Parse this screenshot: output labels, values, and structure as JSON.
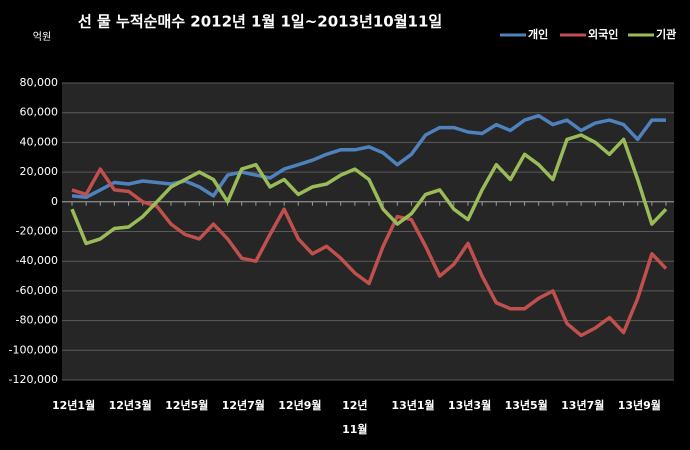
{
  "chart_data": {
    "type": "line",
    "title": "선 물 누적순매수 2012년 1월 1일~2013년10월11일",
    "y_axis_label": "억원",
    "categories": [
      "12년1월",
      null,
      null,
      null,
      "12년3월",
      null,
      null,
      null,
      "12년5월",
      null,
      null,
      null,
      "12년7월",
      null,
      null,
      null,
      "12년9월",
      null,
      null,
      null,
      "12년 11월",
      null,
      null,
      null,
      "13년1월",
      null,
      null,
      null,
      "13년3월",
      null,
      null,
      null,
      "13년5월",
      null,
      null,
      null,
      "13년7월",
      null,
      null,
      null,
      "13년9월",
      null,
      null
    ],
    "series": [
      {
        "name": "개인",
        "color": "#4f81bd",
        "values": [
          4000,
          3000,
          8000,
          13000,
          12000,
          14000,
          13000,
          12000,
          14000,
          10000,
          4000,
          18000,
          20000,
          18000,
          16000,
          22000,
          25000,
          28000,
          32000,
          35000,
          35000,
          37000,
          33000,
          25000,
          32000,
          45000,
          50000,
          50000,
          47000,
          46000,
          52000,
          48000,
          55000,
          58000,
          52000,
          55000,
          48000,
          53000,
          55000,
          52000,
          42000,
          55000,
          55000
        ]
      },
      {
        "name": "외국인",
        "color": "#c0504d",
        "values": [
          8000,
          5000,
          22000,
          8000,
          7000,
          0,
          -3000,
          -15000,
          -22000,
          -25000,
          -15000,
          -25000,
          -38000,
          -40000,
          -22000,
          -5000,
          -25000,
          -35000,
          -30000,
          -38000,
          -48000,
          -55000,
          -30000,
          -10000,
          -12000,
          -30000,
          -50000,
          -42000,
          -28000,
          -50000,
          -68000,
          -72000,
          -72000,
          -65000,
          -60000,
          -82000,
          -90000,
          -85000,
          -78000,
          -88000,
          -65000,
          -35000,
          -45000
        ]
      },
      {
        "name": "기관",
        "color": "#9bbb59",
        "values": [
          -5000,
          -28000,
          -25000,
          -18000,
          -17000,
          -10000,
          0,
          10000,
          15000,
          20000,
          15000,
          0,
          22000,
          25000,
          10000,
          15000,
          5000,
          10000,
          12000,
          18000,
          22000,
          15000,
          -5000,
          -15000,
          -8000,
          5000,
          8000,
          -5000,
          -12000,
          8000,
          25000,
          15000,
          32000,
          25000,
          15000,
          42000,
          45000,
          40000,
          32000,
          42000,
          15000,
          -15000,
          -5000
        ]
      }
    ],
    "ylim": [
      -120000,
      80000
    ],
    "yticks": [
      {
        "value": -120000,
        "label": "-120,000"
      },
      {
        "value": -100000,
        "label": "-100,000"
      },
      {
        "value": -80000,
        "label": "-80,000"
      },
      {
        "value": -60000,
        "label": "-60,000"
      },
      {
        "value": -40000,
        "label": "-40,000"
      },
      {
        "value": -20000,
        "label": "-20,000"
      },
      0,
      {
        "value": 20000,
        "label": "20,000"
      },
      {
        "value": 40000,
        "label": "40,000"
      },
      {
        "value": 60000,
        "label": "60,000"
      },
      {
        "value": 80000,
        "label": "80,000"
      }
    ],
    "grid": true,
    "legend": "top-right"
  }
}
